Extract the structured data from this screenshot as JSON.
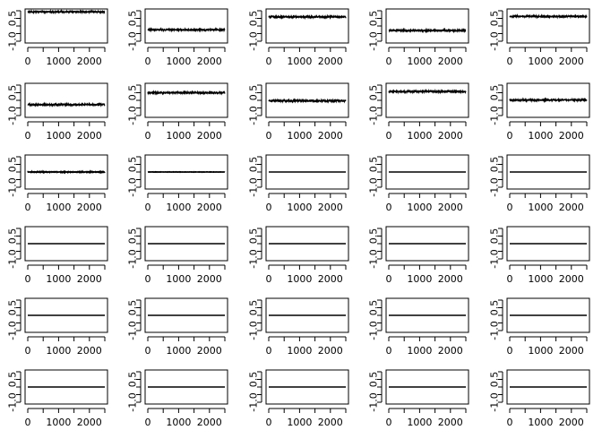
{
  "chart_data": {
    "type": "line",
    "layout": {
      "rows": 6,
      "cols": 5
    },
    "panel_defaults": {
      "xlim": [
        0,
        2500
      ],
      "ylim": [
        -1,
        1
      ],
      "xticks": [
        0,
        500,
        1000,
        1500,
        2000,
        2500
      ],
      "xtick_labels": [
        "0",
        "",
        "1000",
        "",
        "2000",
        ""
      ],
      "yticks": [
        -1,
        -0.5,
        0,
        0.5,
        1
      ],
      "ytick_labels": [
        "-1.0",
        "",
        "",
        "0.5",
        ""
      ],
      "n_points": 2500
    },
    "panels": [
      {
        "level": 0.93,
        "noise": 0.035
      },
      {
        "level": -0.25,
        "noise": 0.035
      },
      {
        "level": 0.6,
        "noise": 0.035
      },
      {
        "level": -0.3,
        "noise": 0.035
      },
      {
        "level": 0.63,
        "noise": 0.035
      },
      {
        "level": -0.28,
        "noise": 0.035
      },
      {
        "level": 0.5,
        "noise": 0.035
      },
      {
        "level": -0.03,
        "noise": 0.035
      },
      {
        "level": 0.58,
        "noise": 0.035
      },
      {
        "level": 0.02,
        "noise": 0.035
      },
      {
        "level": 0.0,
        "noise": 0.015
      },
      {
        "level": 0.0,
        "noise": 0.006
      },
      {
        "level": 0.0,
        "noise": 0.0
      },
      {
        "level": 0.0,
        "noise": 0.0
      },
      {
        "level": 0.0,
        "noise": 0.0
      },
      {
        "level": 0.0,
        "noise": 0.0
      },
      {
        "level": 0.0,
        "noise": 0.0
      },
      {
        "level": 0.0,
        "noise": 0.0
      },
      {
        "level": 0.0,
        "noise": 0.0
      },
      {
        "level": 0.0,
        "noise": 0.0
      },
      {
        "level": 0.0,
        "noise": 0.0
      },
      {
        "level": 0.0,
        "noise": 0.0
      },
      {
        "level": 0.0,
        "noise": 0.0
      },
      {
        "level": 0.0,
        "noise": 0.0
      },
      {
        "level": 0.0,
        "noise": 0.0
      },
      {
        "level": 0.0,
        "noise": 0.0
      },
      {
        "level": 0.0,
        "noise": 0.0
      },
      {
        "level": 0.0,
        "noise": 0.0
      },
      {
        "level": 0.0,
        "noise": 0.0
      },
      {
        "level": 0.0,
        "noise": 0.0
      }
    ]
  }
}
